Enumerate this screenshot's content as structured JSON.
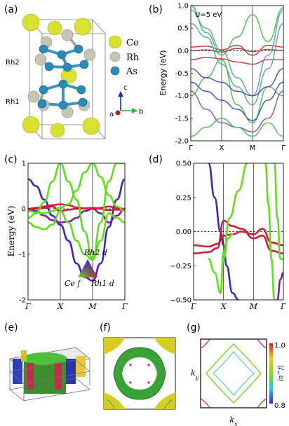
{
  "panels": {
    "a": {
      "label": "(a)",
      "legend": [
        {
          "symbol": "Ce",
          "color": "#d8e030"
        },
        {
          "symbol": "Rh",
          "color": "#c8c4b4"
        },
        {
          "symbol": "As",
          "color": "#2a8ab8"
        }
      ],
      "site_labels": [
        "Rh2",
        "Rh1"
      ],
      "axes_labels": [
        "c",
        "a",
        "b"
      ]
    },
    "b": {
      "label": "(b)",
      "annotation": "U=5 eV"
    },
    "c": {
      "label": "(c)",
      "triangle_labels": {
        "top": "Rh2 d",
        "left": "Ce f",
        "right": "Rh1 d"
      }
    },
    "d": {
      "label": "(d)"
    },
    "e": {
      "label": "(e)"
    },
    "f": {
      "label": "(f)"
    },
    "g": {
      "label": "(g)",
      "xlabel": "k_x",
      "ylabel": "k_y",
      "colorbar": {
        "label": "⟨n^f⟩",
        "max": "1.0",
        "min": "0.8"
      }
    }
  },
  "chart_data": [
    {
      "type": "line",
      "panel": "b",
      "title": "",
      "annotation": "U=5 eV",
      "xlabel": "",
      "ylabel": "Energy (eV)",
      "x_ticks": [
        "Γ",
        "X",
        "M",
        "Γ"
      ],
      "ylim": [
        -2.0,
        1.0
      ],
      "y_ticks": [
        "1.0",
        "0.5",
        "0.0",
        "-0.5",
        "-1.0",
        "-1.5",
        "-2.0"
      ],
      "fermi_level": 0.0,
      "series": [
        {
          "color": "#c0363a",
          "x": [
            0,
            0.5,
            1,
            1.5,
            2,
            2.5,
            3
          ],
          "values": [
            0.0,
            0.02,
            -0.03,
            0.05,
            -0.02,
            0.03,
            0.0
          ]
        },
        {
          "color": "#c0363a",
          "x": [
            0,
            0.5,
            1,
            1.5,
            2,
            2.5,
            3
          ],
          "values": [
            0.08,
            0.1,
            0.02,
            0.12,
            -0.1,
            0.12,
            0.08
          ]
        },
        {
          "color": "#c0363a",
          "x": [
            0,
            0.5,
            1,
            1.5,
            2,
            2.5,
            3
          ],
          "values": [
            -0.2,
            -0.15,
            -0.18,
            -0.25,
            -0.3,
            -0.2,
            -0.2
          ]
        },
        {
          "color": "#5aa2b0",
          "x": [
            0,
            0.5,
            1,
            1.5,
            2,
            2.5,
            3
          ],
          "values": [
            0.6,
            0.3,
            -0.3,
            -0.8,
            -1.2,
            -0.4,
            0.6
          ]
        },
        {
          "color": "#5aa2b0",
          "x": [
            0,
            0.5,
            1,
            1.5,
            2,
            2.5,
            3
          ],
          "values": [
            0.9,
            0.5,
            0.0,
            -0.6,
            -1.0,
            -0.1,
            0.9
          ]
        },
        {
          "color": "#47c24a",
          "x": [
            0,
            0.5,
            1,
            1.5,
            2,
            2.5,
            3
          ],
          "values": [
            -1.0,
            -0.6,
            -0.2,
            -1.2,
            -1.6,
            -0.8,
            -1.0
          ]
        },
        {
          "color": "#47c24a",
          "x": [
            0,
            0.5,
            1,
            1.5,
            2,
            2.5,
            3
          ],
          "values": [
            1.0,
            0.4,
            -0.1,
            0.3,
            0.8,
            0.2,
            0.95
          ]
        },
        {
          "color": "#3f4fc4",
          "x": [
            0,
            0.5,
            1,
            1.5,
            2,
            2.5,
            3
          ],
          "values": [
            -0.7,
            -0.9,
            -1.1,
            -1.3,
            -1.55,
            -1.1,
            -0.7
          ]
        },
        {
          "color": "#3f4fc4",
          "x": [
            0,
            0.5,
            1,
            1.5,
            2,
            2.5,
            3
          ],
          "values": [
            -0.4,
            -0.6,
            -0.7,
            -0.9,
            -1.0,
            -0.8,
            -0.4
          ]
        },
        {
          "color": "#7b58b0",
          "x": [
            0,
            0.5,
            1,
            1.5,
            2,
            2.5,
            3
          ],
          "values": [
            -0.9,
            -1.3,
            -1.6,
            -1.7,
            -1.8,
            -1.5,
            -0.9
          ]
        },
        {
          "color": "#47c24a",
          "x": [
            0,
            0.5,
            1,
            1.5,
            2,
            2.5,
            3
          ],
          "values": [
            -1.9,
            -1.7,
            -1.5,
            -1.7,
            -1.9,
            -1.6,
            -1.9
          ]
        }
      ]
    },
    {
      "type": "line",
      "panel": "c",
      "title": "",
      "xlabel": "",
      "ylabel": "Energy (eV)",
      "x_ticks": [
        "Γ",
        "X",
        "M",
        "Γ"
      ],
      "ylim": [
        -2,
        1
      ],
      "y_ticks": [
        "1",
        "0",
        "-1",
        "-2"
      ],
      "fermi_level": 0.0,
      "series": [
        {
          "color": "#3a24d0",
          "x": [
            0,
            0.25,
            0.5,
            0.75,
            1,
            1.25,
            1.5,
            1.75,
            2,
            2.25,
            2.5,
            2.75,
            3
          ],
          "values": [
            0.65,
            0.5,
            0.2,
            -0.15,
            -0.35,
            -0.7,
            -1.2,
            -1.5,
            -1.58,
            -1.2,
            -0.4,
            0.2,
            0.65
          ]
        },
        {
          "color": "#7a1fa0",
          "x": [
            0,
            0.25,
            0.5,
            0.75,
            1,
            1.25,
            1.5,
            1.75,
            2,
            2.25,
            2.5,
            2.75,
            3
          ],
          "values": [
            0.0,
            -0.05,
            -0.15,
            -0.25,
            -0.3,
            -0.28,
            -0.2,
            -0.05,
            0.0,
            -0.1,
            -0.3,
            -0.15,
            0.0
          ]
        },
        {
          "color": "#cc1e3a",
          "x": [
            0,
            0.25,
            0.5,
            0.75,
            1,
            1.25,
            1.5,
            1.75,
            2,
            2.25,
            2.5,
            2.75,
            3
          ],
          "values": [
            0.0,
            0.02,
            0.05,
            0.08,
            0.1,
            0.08,
            0.03,
            0.01,
            0.0,
            0.02,
            0.05,
            0.02,
            0.0
          ]
        },
        {
          "color": "#cc1e3a",
          "x": [
            0,
            0.25,
            0.5,
            0.75,
            1,
            1.25,
            1.5,
            1.75,
            2,
            2.25,
            2.5,
            2.75,
            3
          ],
          "values": [
            -0.02,
            0.0,
            0.02,
            0.05,
            -0.05,
            -0.02,
            0.0,
            0.01,
            0.02,
            0.0,
            -0.03,
            -0.02,
            -0.02
          ]
        },
        {
          "color": "#5ee014",
          "x": [
            0,
            0.25,
            0.5,
            0.75,
            1,
            1.25,
            1.5,
            1.75,
            2,
            2.25,
            2.5,
            2.75,
            3
          ],
          "values": [
            -0.3,
            -0.4,
            -0.45,
            -0.35,
            -0.05,
            -0.3,
            -0.7,
            -1.0,
            -1.12,
            -0.7,
            -0.1,
            -0.2,
            -0.3
          ]
        },
        {
          "color": "#5ee014",
          "x": [
            0,
            0.25,
            0.5,
            0.75,
            1,
            1.25,
            1.5,
            1.75,
            2,
            2.25,
            2.5,
            2.75,
            3
          ],
          "values": [
            -0.2,
            -0.1,
            0.15,
            0.6,
            1.0,
            0.6,
            0.2,
            -0.5,
            -1.1,
            -0.3,
            0.6,
            1.0,
            1.0
          ]
        },
        {
          "color": "#5ee014",
          "x": [
            0,
            0.25,
            0.5,
            0.75,
            1,
            1.25,
            1.5,
            1.75,
            2,
            2.25,
            2.5,
            2.75,
            3
          ],
          "values": [
            -0.05,
            -0.08,
            -0.1,
            -0.05,
            0.02,
            0.1,
            0.4,
            0.8,
            1.0,
            0.7,
            0.3,
            0.05,
            -0.05
          ]
        }
      ]
    },
    {
      "type": "line",
      "panel": "d",
      "title": "",
      "xlabel": "",
      "ylabel": "",
      "x_ticks": [
        "Γ",
        "X",
        "M",
        "Γ"
      ],
      "ylim": [
        -0.5,
        0.5
      ],
      "y_ticks": [
        "0.50",
        "0.25",
        "0.00",
        "−0.25",
        "−0.50"
      ],
      "fermi_level": 0.0,
      "series": [
        {
          "color": "#3a24d0",
          "x": [
            0.5,
            0.7,
            0.9,
            1.0,
            1.1,
            1.3,
            1.5
          ],
          "values": [
            0.5,
            0.25,
            0.0,
            -0.1,
            -0.25,
            -0.45,
            -0.5
          ]
        },
        {
          "color": "#cc1e3a",
          "x": [
            0,
            0.5,
            0.8,
            1.0,
            1.3,
            1.6,
            2.0,
            2.3,
            2.6,
            3.0
          ],
          "values": [
            -0.1,
            -0.11,
            -0.09,
            -0.03,
            -0.02,
            0.0,
            -0.02,
            0.02,
            -0.08,
            -0.1
          ]
        },
        {
          "color": "#cc1e3a",
          "x": [
            0,
            0.5,
            0.8,
            1.0,
            1.3,
            1.6,
            2.0,
            2.3,
            2.6,
            3.0
          ],
          "values": [
            -0.16,
            -0.15,
            -0.12,
            0.08,
            0.04,
            0.02,
            -0.05,
            -0.03,
            -0.14,
            -0.16
          ]
        },
        {
          "color": "#5ee014",
          "x": [
            0.5,
            0.7,
            0.9,
            1.0,
            1.15,
            1.3
          ],
          "values": [
            -0.2,
            -0.3,
            -0.45,
            -0.2,
            -0.05,
            -0.02
          ]
        },
        {
          "color": "#5ee014",
          "x": [
            0.9,
            1.0,
            1.2,
            1.5,
            1.8
          ],
          "values": [
            -0.45,
            -0.15,
            0.1,
            0.3,
            0.5
          ]
        },
        {
          "color": "#5ee014",
          "x": [
            2.4,
            2.5,
            2.6,
            2.7
          ],
          "values": [
            0.5,
            0.2,
            -0.2,
            -0.5
          ]
        },
        {
          "color": "#5ee014",
          "x": [
            2.7,
            2.8,
            2.9,
            3.0
          ],
          "values": [
            0.5,
            0.1,
            -0.2,
            -0.2
          ]
        },
        {
          "color": "#7a1fa0",
          "x": [
            2.8,
            2.9,
            3.0
          ],
          "values": [
            -0.5,
            -0.35,
            -0.3
          ]
        }
      ]
    }
  ]
}
